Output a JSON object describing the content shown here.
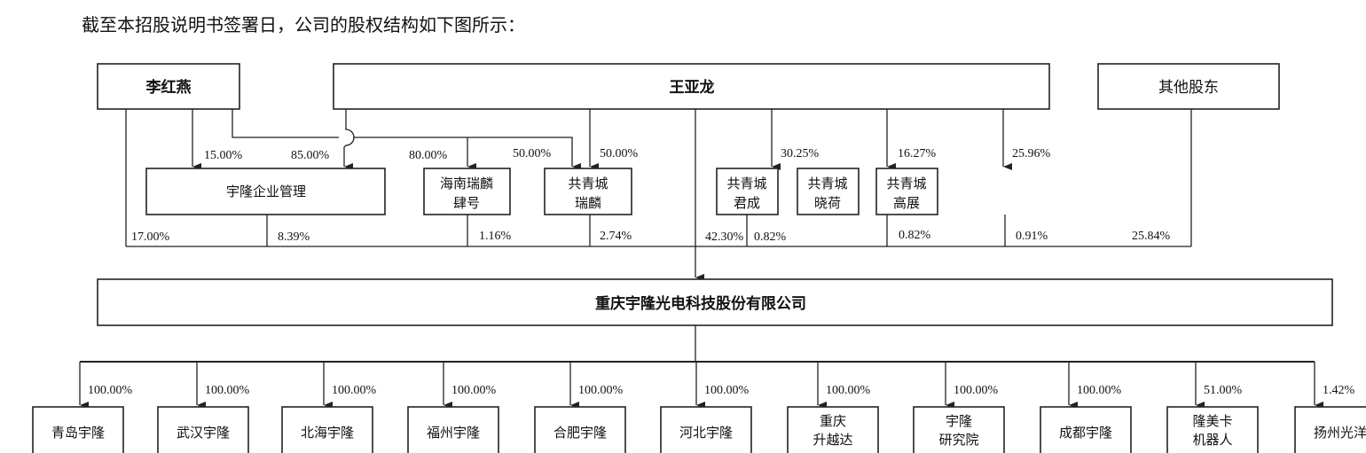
{
  "heading": "截至本招股说明书签署日，公司的股权结构如下图所示：",
  "shareholders": {
    "li": "李红燕",
    "wang": "王亚龙",
    "others": "其他股东"
  },
  "intermediates": {
    "yulong_mgmt": "宇隆企业管理",
    "hainan": [
      "海南瑞麟",
      "肆号"
    ],
    "gqc_ruilin": [
      "共青城",
      "瑞麟"
    ],
    "gqc_juncheng": [
      "共青城",
      "君成"
    ],
    "gqc_xiaohe": [
      "共青城",
      "晓荷"
    ],
    "gqc_gaozhan": [
      "共青城",
      "高展"
    ]
  },
  "upper_pcts": {
    "li_to_mgmt": "15.00%",
    "wang_to_mgmt": "85.00%",
    "li_to_hainan": "80.00%",
    "li_to_ruilin": "50.00%",
    "wang_to_ruilin": "50.00%",
    "wang_to_juncheng": "30.25%",
    "wang_to_xiaohe": "16.27%",
    "wang_to_gaozhan": "25.96%"
  },
  "company_pcts": {
    "li": "17.00%",
    "mgmt": "8.39%",
    "hainan": "1.16%",
    "ruilin": "2.74%",
    "wang": "42.30%",
    "juncheng": "0.82%",
    "xiaohe": "0.82%",
    "gaozhan": "0.91%",
    "others": "25.84%"
  },
  "company": "重庆宇隆光电科技股份有限公司",
  "subsidiaries": [
    {
      "name": [
        "青岛宇隆"
      ],
      "pct": "100.00%"
    },
    {
      "name": [
        "武汉宇隆"
      ],
      "pct": "100.00%"
    },
    {
      "name": [
        "北海宇隆"
      ],
      "pct": "100.00%"
    },
    {
      "name": [
        "福州宇隆"
      ],
      "pct": "100.00%"
    },
    {
      "name": [
        "合肥宇隆"
      ],
      "pct": "100.00%"
    },
    {
      "name": [
        "河北宇隆"
      ],
      "pct": "100.00%"
    },
    {
      "name": [
        "重庆",
        "升越达"
      ],
      "pct": "100.00%"
    },
    {
      "name": [
        "宇隆",
        "研究院"
      ],
      "pct": "100.00%"
    },
    {
      "name": [
        "成都宇隆"
      ],
      "pct": "100.00%"
    },
    {
      "name": [
        "隆美卡",
        "机器人"
      ],
      "pct": "51.00%"
    },
    {
      "name": [
        "扬州光洋"
      ],
      "pct": "1.42%"
    }
  ]
}
